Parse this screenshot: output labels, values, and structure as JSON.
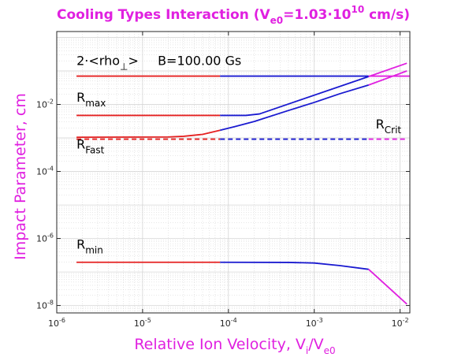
{
  "chart_data": {
    "type": "line",
    "title": {
      "prefix": "Cooling Types Interaction (V",
      "sub": "e0",
      "mid": "=1.03·10",
      "sup": "10",
      "suffix": " cm/s)"
    },
    "xlabel": {
      "main": "Relative Ion Velocity, V",
      "sub1": "i",
      "slash": "/V",
      "sub2": "e0"
    },
    "ylabel": "Impact Parameter, cm",
    "x_scale": "log",
    "y_scale": "log",
    "xlim": [
      1e-06,
      0.013
    ],
    "ylim": [
      6e-09,
      1.5
    ],
    "grid": true,
    "x_ticks": [
      {
        "value": 1e-06,
        "base": "10",
        "exp": "-6"
      },
      {
        "value": 1e-05,
        "base": "10",
        "exp": "-5"
      },
      {
        "value": 0.0001,
        "base": "10",
        "exp": "-4"
      },
      {
        "value": 0.001,
        "base": "10",
        "exp": "-3"
      },
      {
        "value": 0.01,
        "base": "10",
        "exp": "-2"
      }
    ],
    "y_ticks": [
      {
        "value": 1e-08,
        "base": "10",
        "exp": "-8"
      },
      {
        "value": 1e-06,
        "base": "10",
        "exp": "-6"
      },
      {
        "value": 0.0001,
        "base": "10",
        "exp": "-4"
      },
      {
        "value": 0.01,
        "base": "10",
        "exp": "-2"
      }
    ],
    "colors": {
      "red": "#e52020",
      "blue": "#1a1ad0",
      "magenta": "#e020e0",
      "axis": "#262626",
      "grid": "#cfcfcf"
    },
    "series": [
      {
        "id": "rho-perp",
        "style": "solid",
        "segments": [
          {
            "color": "red",
            "points": [
              [
                1.7e-06,
                0.07
              ],
              [
                8e-05,
                0.07
              ]
            ]
          },
          {
            "color": "blue",
            "points": [
              [
                8e-05,
                0.07
              ],
              [
                0.0043,
                0.07
              ]
            ]
          },
          {
            "color": "magenta",
            "points": [
              [
                0.0043,
                0.07
              ],
              [
                0.013,
                0.07
              ]
            ]
          }
        ]
      },
      {
        "id": "r-max",
        "style": "solid",
        "segments": [
          {
            "color": "red",
            "points": [
              [
                1.7e-06,
                0.0047
              ],
              [
                8e-05,
                0.0047
              ]
            ]
          },
          {
            "color": "blue",
            "points": [
              [
                8e-05,
                0.0047
              ],
              [
                0.00016,
                0.0047
              ],
              [
                0.00023,
                0.0052
              ],
              [
                0.0043,
                0.068
              ]
            ]
          },
          {
            "color": "magenta",
            "points": [
              [
                0.0043,
                0.068
              ],
              [
                0.012,
                0.17
              ]
            ]
          }
        ]
      },
      {
        "id": "r-max-lower",
        "style": "solid",
        "segments": [
          {
            "color": "red",
            "points": [
              [
                1.7e-06,
                0.00105
              ],
              [
                2e-05,
                0.00107
              ],
              [
                3e-05,
                0.00112
              ],
              [
                5e-05,
                0.00128
              ],
              [
                8e-05,
                0.0017
              ]
            ]
          },
          {
            "color": "blue",
            "points": [
              [
                8e-05,
                0.0017
              ],
              [
                0.00012,
                0.0022
              ],
              [
                0.0002,
                0.0031
              ],
              [
                0.0005,
                0.0066
              ],
              [
                0.001,
                0.0115
              ],
              [
                0.002,
                0.021
              ],
              [
                0.0043,
                0.038
              ]
            ]
          },
          {
            "color": "magenta",
            "points": [
              [
                0.0043,
                0.038
              ],
              [
                0.012,
                0.1
              ]
            ]
          }
        ]
      },
      {
        "id": "r-fast",
        "style": "dashed",
        "segments": [
          {
            "color": "red",
            "points": [
              [
                1.7e-06,
                0.00092
              ],
              [
                8e-05,
                0.00092
              ]
            ]
          },
          {
            "color": "blue",
            "points": [
              [
                8e-05,
                0.00092
              ],
              [
                0.0043,
                0.00092
              ]
            ]
          },
          {
            "color": "magenta",
            "points": [
              [
                0.0043,
                0.00092
              ],
              [
                0.012,
                0.00092
              ]
            ]
          }
        ]
      },
      {
        "id": "r-min",
        "style": "solid",
        "segments": [
          {
            "color": "red",
            "points": [
              [
                1.7e-06,
                1.95e-07
              ],
              [
                8e-05,
                1.95e-07
              ]
            ]
          },
          {
            "color": "blue",
            "points": [
              [
                8e-05,
                1.95e-07
              ],
              [
                0.0005,
                1.93e-07
              ],
              [
                0.001,
                1.85e-07
              ],
              [
                0.002,
                1.55e-07
              ],
              [
                0.0043,
                1.2e-07
              ]
            ]
          },
          {
            "color": "magenta",
            "points": [
              [
                0.0043,
                1.2e-07
              ],
              [
                0.012,
                1.1e-08
              ]
            ]
          }
        ]
      }
    ],
    "annotations": [
      {
        "id": "rho-label",
        "parts": [
          {
            "t": "2·<rho"
          },
          {
            "t": "⊥",
            "sub": true
          },
          {
            "t": ">"
          }
        ],
        "x": 1.7e-06,
        "y": 0.15
      },
      {
        "id": "b-label",
        "parts": [
          {
            "t": "B=100.00 Gs"
          }
        ],
        "x": 1.5e-05,
        "y": 0.15
      },
      {
        "id": "rmax-label",
        "parts": [
          {
            "t": "R"
          },
          {
            "t": "max",
            "sub": true
          }
        ],
        "x": 1.7e-06,
        "y": 0.012
      },
      {
        "id": "rfast-label",
        "parts": [
          {
            "t": "R"
          },
          {
            "t": "Fast",
            "sub": true
          }
        ],
        "x": 1.7e-06,
        "y": 0.00048
      },
      {
        "id": "rcrit-label",
        "parts": [
          {
            "t": "R"
          },
          {
            "t": "Crit",
            "sub": true
          }
        ],
        "x": 0.0052,
        "y": 0.0019
      },
      {
        "id": "rmin-label",
        "parts": [
          {
            "t": "R"
          },
          {
            "t": "min",
            "sub": true
          }
        ],
        "x": 1.7e-06,
        "y": 5e-07
      }
    ]
  }
}
